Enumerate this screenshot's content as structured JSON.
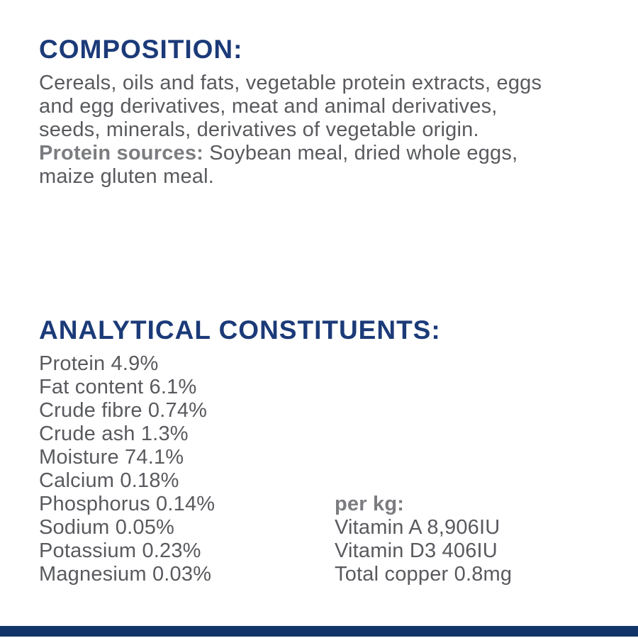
{
  "page": {
    "background_color": "#ffffff",
    "heading_color": "#1b3a78",
    "body_text_color": "#595a5e",
    "bold_label_color": "#7b7c80",
    "bottom_bar_color": "#123569"
  },
  "composition": {
    "heading": "COMPOSITION:",
    "body": "Cereals, oils and fats, vegetable protein extracts, eggs\nand egg derivatives, meat and animal derivatives,\nseeds, minerals, derivatives of vegetable origin.",
    "protein_sources_label": "Protein sources:",
    "protein_sources_text": " Soybean meal, dried whole eggs,\nmaize gluten meal."
  },
  "analytical": {
    "heading": "ANALYTICAL CONSTITUENTS:",
    "items": [
      "Protein 4.9%",
      "Fat content 6.1%",
      "Crude fibre 0.74%",
      "Crude ash 1.3%",
      "Moisture 74.1%",
      "Calcium 0.18%",
      "Phosphorus 0.14%",
      "Sodium 0.05%",
      "Potassium 0.23%",
      "Magnesium 0.03%"
    ],
    "per_kg": {
      "label": "per kg:",
      "items": [
        "Vitamin A 8,906IU",
        "Vitamin D3 406IU",
        "Total copper 0.8mg"
      ]
    }
  }
}
